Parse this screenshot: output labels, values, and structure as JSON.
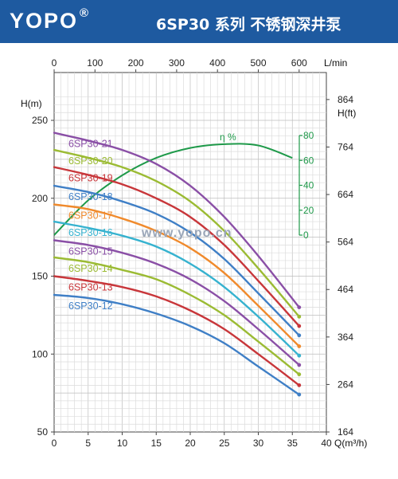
{
  "header": {
    "brand": "YOPO",
    "brand_mark": "®",
    "title": "6SP30  系列 不锈钢深井泵",
    "bg_color": "#1e5aa0"
  },
  "watermark": "www.yopo.cn",
  "chart_data": {
    "type": "line",
    "x": [
      0,
      5,
      10,
      15,
      20,
      25,
      30,
      36
    ],
    "xlim": [
      0,
      40
    ],
    "xticks": [
      0,
      5,
      10,
      15,
      20,
      25,
      30,
      35,
      40
    ],
    "xlabel": "Q(m³/h)",
    "ylim": [
      50,
      250
    ],
    "yticks": [
      50,
      100,
      150,
      200,
      250
    ],
    "ylabel": "H(m)",
    "top_axis": {
      "ticks": [
        0,
        100,
        200,
        300,
        400,
        500,
        600
      ],
      "label": "L/min"
    },
    "right_axis": {
      "ticks": [
        164,
        264,
        364,
        464,
        564,
        664,
        764,
        864
      ],
      "label": "H(ft)"
    },
    "grid": true,
    "series": [
      {
        "name": "6SP30-21",
        "color": "#8a4fa6",
        "values": [
          242,
          237,
          231,
          222,
          208,
          188,
          163,
          130
        ]
      },
      {
        "name": "6SP30-20",
        "color": "#9bbb33",
        "values": [
          231,
          226,
          220,
          211,
          198,
          179,
          155,
          124
        ]
      },
      {
        "name": "6SP30-19",
        "color": "#c8363a",
        "values": [
          220,
          215,
          209,
          200,
          188,
          170,
          147,
          118
        ]
      },
      {
        "name": "6SP30-18",
        "color": "#3f7fc6",
        "values": [
          208,
          204,
          198,
          190,
          178,
          161,
          139,
          112
        ]
      },
      {
        "name": "6SP30-17",
        "color": "#f08a2c",
        "values": [
          196,
          193,
          187,
          179,
          168,
          152,
          131,
          105
        ]
      },
      {
        "name": "6SP30-16",
        "color": "#36b2cf",
        "values": [
          185,
          181,
          176,
          169,
          158,
          143,
          124,
          99
        ]
      },
      {
        "name": "6SP30-15",
        "color": "#8a4fa6",
        "values": [
          173,
          170,
          165,
          158,
          148,
          134,
          116,
          93
        ]
      },
      {
        "name": "6SP30-14",
        "color": "#9bbb33",
        "values": [
          162,
          159,
          154,
          148,
          138,
          125,
          108,
          87
        ]
      },
      {
        "name": "6SP30-13",
        "color": "#c8363a",
        "values": [
          150,
          147,
          143,
          137,
          128,
          116,
          100,
          80
        ]
      },
      {
        "name": "6SP30-12",
        "color": "#3f7fc6",
        "values": [
          138,
          136,
          132,
          126,
          118,
          107,
          92,
          74
        ]
      }
    ],
    "efficiency": {
      "label": "η %",
      "color": "#1f9a4a",
      "ticks": [
        0,
        20,
        40,
        60,
        80
      ],
      "x": [
        0,
        5,
        10,
        15,
        20,
        25,
        30,
        35
      ],
      "values": [
        0,
        28,
        48,
        62,
        70,
        73,
        72,
        62
      ]
    }
  }
}
